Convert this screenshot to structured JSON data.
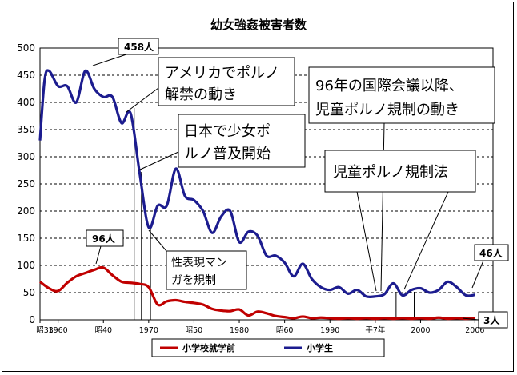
{
  "chart_data": {
    "type": "line",
    "title": "幼女強姦被害者数",
    "ylim": [
      0,
      500
    ],
    "yticks": [
      0,
      50,
      100,
      150,
      200,
      250,
      300,
      350,
      400,
      450,
      500
    ],
    "xlim": [
      1958,
      2008
    ],
    "xtick_labels": [
      {
        "x": 1958,
        "label": "昭33"
      },
      {
        "x": 1960,
        "label": "1960"
      },
      {
        "x": 1965,
        "label": "昭40"
      },
      {
        "x": 1970,
        "label": "1970"
      },
      {
        "x": 1975,
        "label": "昭50"
      },
      {
        "x": 1980,
        "label": "1980"
      },
      {
        "x": 1985,
        "label": "昭60"
      },
      {
        "x": 1990,
        "label": "1990"
      },
      {
        "x": 1995,
        "label": "平7年"
      },
      {
        "x": 2000,
        "label": "2000"
      },
      {
        "x": 2006,
        "label": "2006"
      }
    ],
    "grid": true,
    "legend_position": "bottom",
    "series": [
      {
        "name": "小学校就学前",
        "color": "#c00000",
        "points": [
          [
            1958,
            70
          ],
          [
            1959,
            58
          ],
          [
            1960,
            53
          ],
          [
            1961,
            68
          ],
          [
            1962,
            80
          ],
          [
            1963,
            86
          ],
          [
            1964,
            92
          ],
          [
            1965,
            96
          ],
          [
            1966,
            82
          ],
          [
            1967,
            70
          ],
          [
            1968,
            68
          ],
          [
            1969,
            66
          ],
          [
            1970,
            60
          ],
          [
            1971,
            28
          ],
          [
            1972,
            34
          ],
          [
            1973,
            36
          ],
          [
            1974,
            33
          ],
          [
            1975,
            31
          ],
          [
            1976,
            28
          ],
          [
            1977,
            20
          ],
          [
            1978,
            17
          ],
          [
            1979,
            16
          ],
          [
            1980,
            19
          ],
          [
            1981,
            8
          ],
          [
            1982,
            15
          ],
          [
            1983,
            12
          ],
          [
            1984,
            7
          ],
          [
            1985,
            5
          ],
          [
            1986,
            3
          ],
          [
            1987,
            6
          ],
          [
            1988,
            3
          ],
          [
            1989,
            4
          ],
          [
            1990,
            3
          ],
          [
            1991,
            2
          ],
          [
            1992,
            3
          ],
          [
            1993,
            2
          ],
          [
            1994,
            3
          ],
          [
            1995,
            2
          ],
          [
            1996,
            3
          ],
          [
            1997,
            2
          ],
          [
            1998,
            3
          ],
          [
            1999,
            2
          ],
          [
            2000,
            3
          ],
          [
            2001,
            2
          ],
          [
            2002,
            4
          ],
          [
            2003,
            2
          ],
          [
            2004,
            3
          ],
          [
            2005,
            2
          ],
          [
            2006,
            3
          ]
        ]
      },
      {
        "name": "小学生",
        "color": "#1c1c8f",
        "points": [
          [
            1958,
            330
          ],
          [
            1958.5,
            440
          ],
          [
            1959,
            458
          ],
          [
            1960,
            430
          ],
          [
            1961,
            430
          ],
          [
            1962,
            400
          ],
          [
            1963,
            458
          ],
          [
            1964,
            425
          ],
          [
            1965,
            410
          ],
          [
            1966,
            410
          ],
          [
            1967,
            362
          ],
          [
            1968,
            380
          ],
          [
            1969,
            270
          ],
          [
            1970,
            170
          ],
          [
            1971,
            210
          ],
          [
            1972,
            210
          ],
          [
            1973,
            278
          ],
          [
            1974,
            228
          ],
          [
            1975,
            220
          ],
          [
            1976,
            200
          ],
          [
            1977,
            160
          ],
          [
            1978,
            190
          ],
          [
            1979,
            200
          ],
          [
            1980,
            143
          ],
          [
            1981,
            162
          ],
          [
            1982,
            155
          ],
          [
            1983,
            118
          ],
          [
            1984,
            118
          ],
          [
            1985,
            105
          ],
          [
            1986,
            80
          ],
          [
            1987,
            103
          ],
          [
            1988,
            75
          ],
          [
            1989,
            60
          ],
          [
            1990,
            55
          ],
          [
            1991,
            60
          ],
          [
            1992,
            48
          ],
          [
            1993,
            55
          ],
          [
            1994,
            43
          ],
          [
            1995,
            43
          ],
          [
            1996,
            47
          ],
          [
            1997,
            67
          ],
          [
            1998,
            45
          ],
          [
            1999,
            55
          ],
          [
            2000,
            58
          ],
          [
            2001,
            50
          ],
          [
            2002,
            55
          ],
          [
            2003,
            70
          ],
          [
            2004,
            60
          ],
          [
            2005,
            45
          ],
          [
            2006,
            46
          ]
        ]
      }
    ],
    "peak_labels": [
      {
        "text": "458人"
      },
      {
        "text": "96人"
      },
      {
        "text": "46人"
      },
      {
        "text": "3人"
      }
    ],
    "annotations": [
      {
        "line1": "アメリカでポルノ",
        "line2": "解禁の動き"
      },
      {
        "line1": "日本で少女ポ",
        "line2": "ルノ普及開始"
      },
      {
        "line1": "性表現マン",
        "line2": "ガを規制"
      },
      {
        "line1": "96年の国際会議以降、",
        "line2": "児童ポルノ規制の動き"
      },
      {
        "line1": "児童ポルノ規制法",
        "line2": ""
      }
    ],
    "legend": [
      {
        "label": "小学校就学前"
      },
      {
        "label": "小学生"
      }
    ]
  }
}
